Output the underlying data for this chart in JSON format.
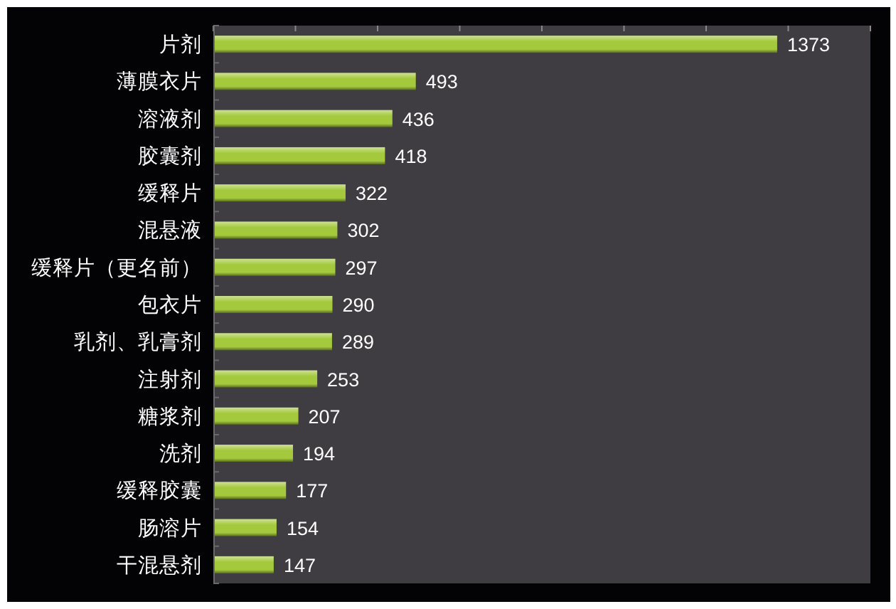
{
  "chart_data": {
    "type": "bar",
    "orientation": "horizontal",
    "categories": [
      "片剂",
      "薄膜衣片",
      "溶液剂",
      "胶囊剂",
      "缓释片",
      "混悬液",
      "缓释片（更名前）",
      "包衣片",
      "乳剂、乳膏剂",
      "注射剂",
      "糖浆剂",
      "洗剂",
      "缓释胶囊",
      "肠溶片",
      "干混悬剂"
    ],
    "values": [
      1373,
      493,
      436,
      418,
      322,
      302,
      297,
      290,
      289,
      253,
      207,
      194,
      177,
      154,
      147
    ],
    "color": "#a4c93c",
    "xlim": [
      0,
      1600
    ],
    "xticks": [
      {
        "value": 0,
        "label": null
      },
      {
        "value": 200,
        "label": null
      },
      {
        "value": 400,
        "label": null
      },
      {
        "value": 600,
        "label": null
      },
      {
        "value": 800,
        "label": null
      },
      {
        "value": 1000,
        "label": null
      },
      {
        "value": 1200,
        "label": null
      },
      {
        "value": 1400,
        "label": null
      },
      {
        "value": 1600,
        "label": null
      }
    ],
    "data_labels": true
  }
}
